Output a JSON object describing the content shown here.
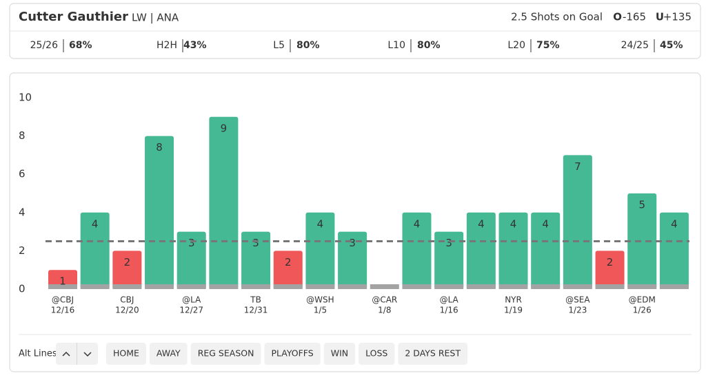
{
  "header": {
    "player": "Cutter Gauthier",
    "position": "LW | ANA",
    "market": "2.5 Shots on Goal",
    "over_label": "O",
    "over_odds": "-165",
    "under_label": "U",
    "under_odds": "+135",
    "over_color": "#1e9e6e",
    "under_color": "#e5484d"
  },
  "stats": [
    {
      "label": "25/26",
      "value": "68%",
      "color": "#1e9e6e"
    },
    {
      "label": "H2H",
      "value": "43%",
      "color": "#e5484d"
    },
    {
      "label": "L5",
      "value": "80%",
      "color": "#1e9e6e"
    },
    {
      "label": "L10",
      "value": "80%",
      "color": "#1e9e6e"
    },
    {
      "label": "L20",
      "value": "75%",
      "color": "#1e9e6e"
    },
    {
      "label": "24/25",
      "value": "45%",
      "color": "#e5484d"
    }
  ],
  "chart_data": {
    "type": "bar",
    "categories": [
      "@CBJ",
      null,
      "CBJ",
      null,
      "@LA",
      null,
      "TB",
      null,
      "@WSH",
      null,
      "@CAR",
      null,
      "@LA",
      null,
      "NYR",
      null,
      "@SEA",
      null,
      "@EDM",
      null
    ],
    "dates": [
      "12/16",
      null,
      "12/20",
      null,
      "12/27",
      null,
      "12/31",
      null,
      "1/5",
      null,
      "1/8",
      null,
      "1/16",
      null,
      "1/19",
      null,
      "1/23",
      null,
      "1/26",
      null
    ],
    "values": [
      1,
      4,
      2,
      8,
      3,
      9,
      3,
      2,
      4,
      3,
      0,
      4,
      3,
      4,
      4,
      4,
      7,
      2,
      5,
      4
    ],
    "line": 2.5,
    "colors": {
      "over": "#45b894",
      "under": "#ef5759",
      "base": "#a3a3a3"
    },
    "ylim": [
      0,
      10
    ],
    "yticks": [
      0,
      2,
      4,
      6,
      8,
      10
    ]
  },
  "filters": {
    "label": "Alt Lines",
    "buttons": [
      "HOME",
      "AWAY",
      "REG SEASON",
      "PLAYOFFS",
      "WIN",
      "LOSS",
      "2 DAYS REST"
    ]
  }
}
